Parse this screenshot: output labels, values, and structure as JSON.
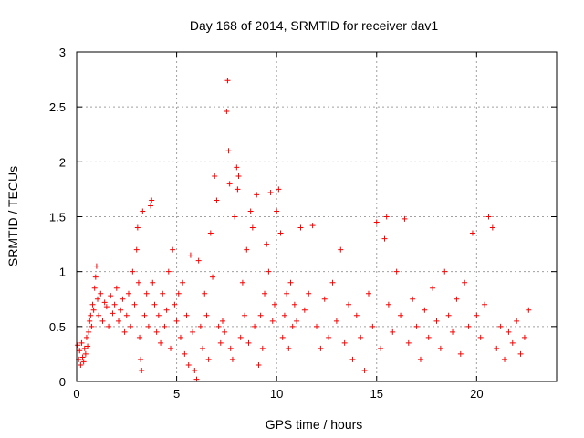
{
  "chart_data": {
    "type": "scatter",
    "title": "Day 168 of 2014, SRMTID for receiver dav1",
    "xlabel": "GPS time / hours",
    "ylabel": "SRMTID / TECUs",
    "xlim": [
      0,
      24
    ],
    "ylim": [
      0,
      3
    ],
    "xticks": [
      0,
      5,
      10,
      15,
      20
    ],
    "xtick_labels": [
      "0",
      "5",
      "10",
      "15",
      "20"
    ],
    "yticks": [
      0,
      0.5,
      1,
      1.5,
      2,
      2.5,
      3
    ],
    "ytick_labels": [
      "0",
      "0.5",
      "1",
      "1.5",
      "2",
      "2.5",
      "3"
    ],
    "grid": true,
    "marker": "+",
    "color": "#ff0000",
    "series": [
      {
        "name": "dav1",
        "points": [
          [
            0.05,
            0.33
          ],
          [
            0.1,
            0.2
          ],
          [
            0.15,
            0.28
          ],
          [
            0.2,
            0.15
          ],
          [
            0.25,
            0.35
          ],
          [
            0.3,
            0.22
          ],
          [
            0.35,
            0.18
          ],
          [
            0.4,
            0.3
          ],
          [
            0.45,
            0.25
          ],
          [
            0.5,
            0.4
          ],
          [
            0.55,
            0.32
          ],
          [
            0.6,
            0.45
          ],
          [
            0.65,
            0.55
          ],
          [
            0.7,
            0.6
          ],
          [
            0.75,
            0.5
          ],
          [
            0.8,
            0.7
          ],
          [
            0.85,
            0.65
          ],
          [
            0.9,
            0.85
          ],
          [
            0.95,
            0.95
          ],
          [
            1.0,
            1.05
          ],
          [
            1.05,
            0.75
          ],
          [
            1.1,
            0.6
          ],
          [
            1.2,
            0.8
          ],
          [
            1.3,
            0.55
          ],
          [
            1.4,
            0.72
          ],
          [
            1.5,
            0.68
          ],
          [
            1.6,
            0.5
          ],
          [
            1.7,
            0.78
          ],
          [
            1.8,
            0.62
          ],
          [
            1.9,
            0.7
          ],
          [
            2.0,
            0.85
          ],
          [
            2.1,
            0.55
          ],
          [
            2.2,
            0.65
          ],
          [
            2.3,
            0.75
          ],
          [
            2.4,
            0.45
          ],
          [
            2.5,
            0.6
          ],
          [
            2.6,
            0.8
          ],
          [
            2.7,
            0.5
          ],
          [
            2.8,
            1.0
          ],
          [
            2.9,
            0.7
          ],
          [
            3.0,
            1.2
          ],
          [
            3.05,
            1.4
          ],
          [
            3.1,
            0.9
          ],
          [
            3.15,
            0.4
          ],
          [
            3.2,
            0.2
          ],
          [
            3.25,
            0.1
          ],
          [
            3.3,
            1.55
          ],
          [
            3.4,
            0.6
          ],
          [
            3.5,
            0.8
          ],
          [
            3.6,
            0.5
          ],
          [
            3.7,
            1.6
          ],
          [
            3.75,
            1.65
          ],
          [
            3.8,
            0.9
          ],
          [
            3.9,
            0.7
          ],
          [
            4.0,
            0.45
          ],
          [
            4.1,
            0.6
          ],
          [
            4.2,
            0.35
          ],
          [
            4.3,
            0.8
          ],
          [
            4.4,
            0.5
          ],
          [
            4.5,
            0.65
          ],
          [
            4.6,
            1.0
          ],
          [
            4.7,
            0.3
          ],
          [
            4.8,
            1.2
          ],
          [
            4.9,
            0.7
          ],
          [
            5.0,
            0.55
          ],
          [
            5.1,
            0.8
          ],
          [
            5.2,
            0.4
          ],
          [
            5.3,
            0.9
          ],
          [
            5.4,
            0.25
          ],
          [
            5.5,
            0.6
          ],
          [
            5.6,
            0.15
          ],
          [
            5.7,
            1.15
          ],
          [
            5.8,
            0.45
          ],
          [
            5.9,
            0.1
          ],
          [
            6.0,
            0.02
          ],
          [
            6.1,
            1.1
          ],
          [
            6.2,
            0.5
          ],
          [
            6.3,
            0.3
          ],
          [
            6.4,
            0.8
          ],
          [
            6.5,
            0.6
          ],
          [
            6.6,
            0.2
          ],
          [
            6.7,
            1.35
          ],
          [
            6.8,
            0.95
          ],
          [
            6.9,
            1.87
          ],
          [
            7.0,
            1.65
          ],
          [
            7.1,
            0.5
          ],
          [
            7.2,
            0.35
          ],
          [
            7.3,
            0.55
          ],
          [
            7.4,
            0.45
          ],
          [
            7.5,
            2.46
          ],
          [
            7.55,
            2.74
          ],
          [
            7.6,
            2.1
          ],
          [
            7.65,
            1.8
          ],
          [
            7.7,
            0.3
          ],
          [
            7.8,
            0.2
          ],
          [
            7.9,
            1.5
          ],
          [
            8.0,
            1.95
          ],
          [
            8.05,
            1.75
          ],
          [
            8.1,
            1.87
          ],
          [
            8.2,
            0.4
          ],
          [
            8.3,
            0.9
          ],
          [
            8.4,
            0.6
          ],
          [
            8.5,
            1.2
          ],
          [
            8.6,
            0.35
          ],
          [
            8.7,
            1.55
          ],
          [
            8.8,
            1.4
          ],
          [
            8.9,
            0.5
          ],
          [
            9.0,
            1.7
          ],
          [
            9.1,
            0.15
          ],
          [
            9.2,
            0.6
          ],
          [
            9.3,
            0.3
          ],
          [
            9.4,
            0.8
          ],
          [
            9.5,
            1.25
          ],
          [
            9.6,
            1.0
          ],
          [
            9.7,
            1.72
          ],
          [
            9.8,
            0.55
          ],
          [
            9.9,
            0.7
          ],
          [
            10.0,
            1.55
          ],
          [
            10.1,
            1.75
          ],
          [
            10.2,
            1.35
          ],
          [
            10.3,
            0.4
          ],
          [
            10.4,
            0.6
          ],
          [
            10.5,
            0.8
          ],
          [
            10.6,
            0.3
          ],
          [
            10.7,
            0.9
          ],
          [
            10.8,
            0.5
          ],
          [
            10.9,
            0.7
          ],
          [
            11.0,
            0.55
          ],
          [
            11.2,
            1.4
          ],
          [
            11.4,
            0.65
          ],
          [
            11.6,
            0.8
          ],
          [
            11.8,
            1.42
          ],
          [
            12.0,
            0.5
          ],
          [
            12.2,
            0.3
          ],
          [
            12.4,
            0.75
          ],
          [
            12.6,
            0.4
          ],
          [
            12.8,
            0.9
          ],
          [
            13.0,
            0.55
          ],
          [
            13.2,
            1.2
          ],
          [
            13.4,
            0.35
          ],
          [
            13.6,
            0.7
          ],
          [
            13.8,
            0.2
          ],
          [
            14.0,
            0.6
          ],
          [
            14.2,
            0.4
          ],
          [
            14.4,
            0.1
          ],
          [
            14.6,
            0.8
          ],
          [
            14.8,
            0.5
          ],
          [
            15.0,
            1.45
          ],
          [
            15.2,
            0.3
          ],
          [
            15.4,
            1.3
          ],
          [
            15.5,
            1.5
          ],
          [
            15.6,
            0.7
          ],
          [
            15.8,
            0.45
          ],
          [
            16.0,
            1.0
          ],
          [
            16.2,
            0.6
          ],
          [
            16.4,
            1.48
          ],
          [
            16.6,
            0.35
          ],
          [
            16.8,
            0.75
          ],
          [
            17.0,
            0.5
          ],
          [
            17.2,
            0.2
          ],
          [
            17.4,
            0.65
          ],
          [
            17.6,
            0.4
          ],
          [
            17.8,
            0.85
          ],
          [
            18.0,
            0.55
          ],
          [
            18.2,
            0.3
          ],
          [
            18.4,
            1.0
          ],
          [
            18.6,
            0.6
          ],
          [
            18.8,
            0.45
          ],
          [
            19.0,
            0.75
          ],
          [
            19.2,
            0.25
          ],
          [
            19.4,
            0.9
          ],
          [
            19.6,
            0.5
          ],
          [
            19.8,
            1.35
          ],
          [
            20.0,
            0.6
          ],
          [
            20.2,
            0.4
          ],
          [
            20.4,
            0.7
          ],
          [
            20.6,
            1.5
          ],
          [
            20.8,
            1.4
          ],
          [
            21.0,
            0.3
          ],
          [
            21.2,
            0.5
          ],
          [
            21.4,
            0.2
          ],
          [
            21.6,
            0.45
          ],
          [
            21.8,
            0.35
          ],
          [
            22.0,
            0.55
          ],
          [
            22.2,
            0.25
          ],
          [
            22.4,
            0.4
          ],
          [
            22.6,
            0.65
          ]
        ]
      }
    ]
  }
}
